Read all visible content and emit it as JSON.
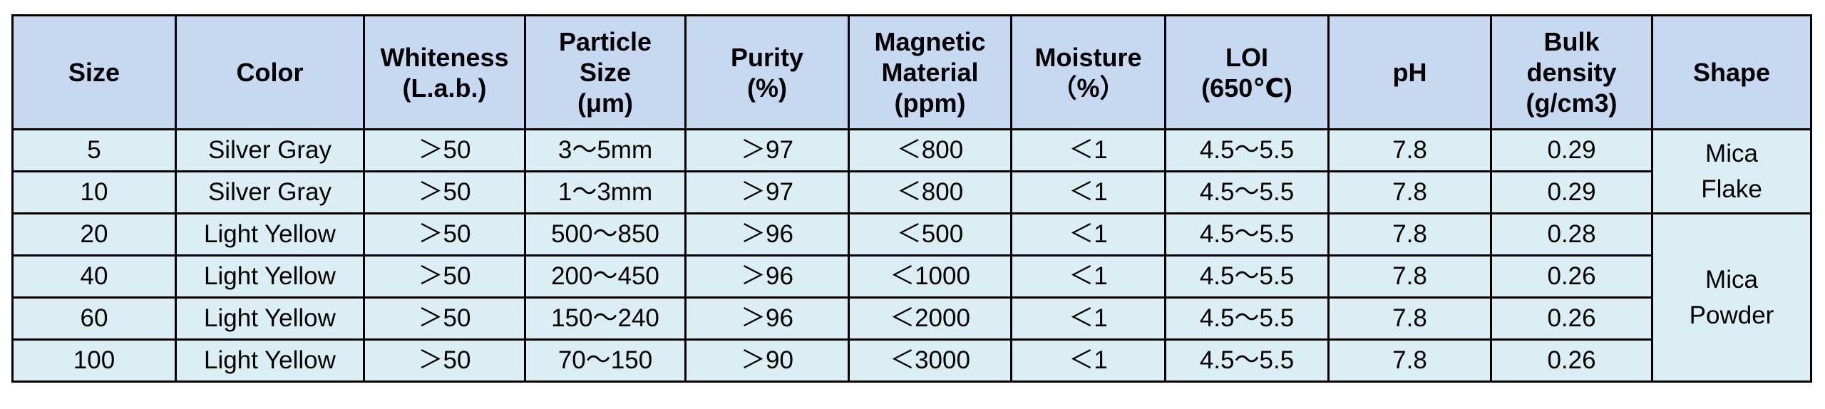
{
  "table": {
    "header": [
      "Size",
      "Color",
      "Whiteness\n(L.a.b.)",
      "Particle\nSize\n(μm)",
      "Purity\n(%)",
      "Magnetic\nMaterial\n(ppm)",
      "Moisture\n（%）",
      "LOI\n(650℃)",
      "pH",
      "Bulk\ndensity\n(g/cm3)",
      "Shape"
    ],
    "rows": [
      [
        "5",
        "Silver Gray",
        "＞50",
        "3～5mm",
        "＞97",
        "＜800",
        "＜1",
        "4.5～5.5",
        "7.8",
        "0.29"
      ],
      [
        "10",
        "Silver Gray",
        "＞50",
        "1～3mm",
        "＞97",
        "＜800",
        "＜1",
        "4.5～5.5",
        "7.8",
        "0.29"
      ],
      [
        "20",
        "Light Yellow",
        "＞50",
        "500～850",
        "＞96",
        "＜500",
        "＜1",
        "4.5～5.5",
        "7.8",
        "0.28"
      ],
      [
        "40",
        "Light Yellow",
        "＞50",
        "200～450",
        "＞96",
        "＜1000",
        "＜1",
        "4.5～5.5",
        "7.8",
        "0.26"
      ],
      [
        "60",
        "Light Yellow",
        "＞50",
        "150～240",
        "＞96",
        "＜2000",
        "＜1",
        "4.5～5.5",
        "7.8",
        "0.26"
      ],
      [
        "100",
        "Light Yellow",
        "＞50",
        "70～150",
        "＞90",
        "＜3000",
        "＜1",
        "4.5～5.5",
        "7.8",
        "0.26"
      ]
    ],
    "shape": [
      "Mica\nFlake",
      "Mica\nPowder"
    ]
  }
}
